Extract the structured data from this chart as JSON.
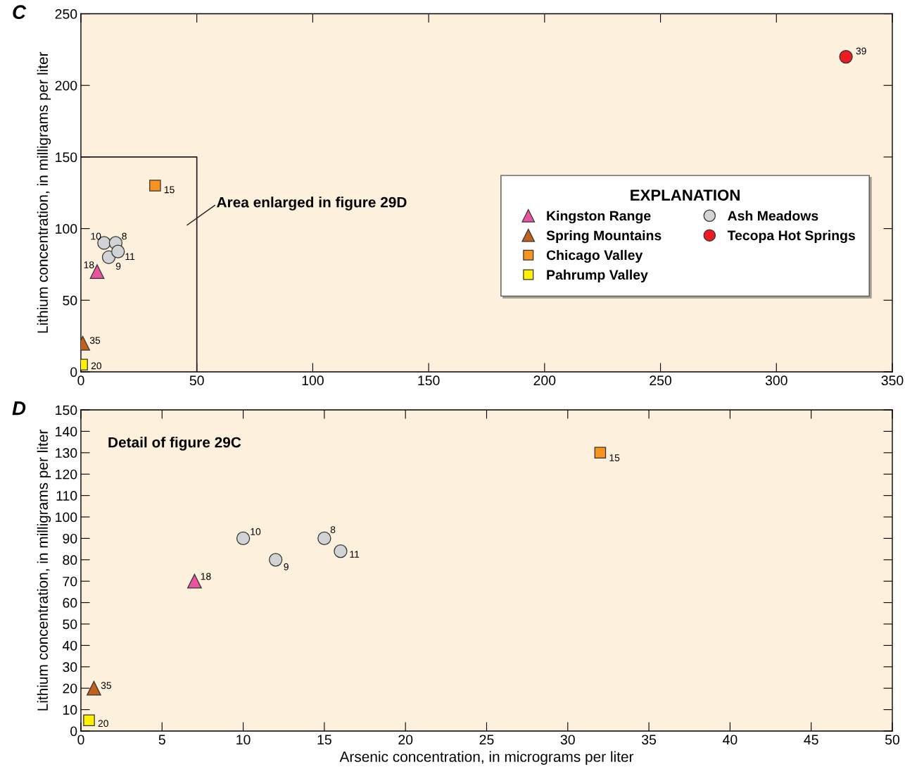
{
  "chart_data": [
    {
      "type": "scatter",
      "title": "C",
      "ylabel": "Lithium concentration, in milligrams per liter",
      "legend_title": "EXPLANATION",
      "legend": "right",
      "grid": false,
      "xlim": [
        0,
        350
      ],
      "ylim": [
        0,
        250
      ],
      "xticks": [
        0,
        50,
        100,
        150,
        200,
        250,
        300,
        350
      ],
      "yticks": [
        0,
        50,
        100,
        150,
        200,
        250
      ],
      "series": [
        {
          "name": "Kingston Range",
          "color": "#e8559e",
          "marker": "triangle",
          "x": [
            7
          ],
          "values": [
            70
          ]
        },
        {
          "name": "Spring Mountains",
          "color": "#c0621c",
          "marker": "triangle",
          "x": [
            0.8
          ],
          "values": [
            20
          ]
        },
        {
          "name": "Chicago Valley",
          "color": "#f7931e",
          "marker": "square",
          "x": [
            32
          ],
          "values": [
            130
          ]
        },
        {
          "name": "Pahrump Valley",
          "color": "#fff200",
          "marker": "square",
          "x": [
            0.5
          ],
          "values": [
            5
          ]
        },
        {
          "name": "Ash Meadows",
          "color": "#d1d3d4",
          "marker": "circle",
          "x": [
            10,
            12,
            15,
            16
          ],
          "values": [
            90,
            80,
            90,
            84
          ]
        },
        {
          "name": "Tecopa Hot Springs",
          "color": "#ed1c24",
          "marker": "circle",
          "x": [
            330
          ],
          "values": [
            220
          ]
        },
        {
          "type": "line",
          "color": "#231f20",
          "marker": "none",
          "line_style": "solid",
          "x": [
            0,
            50,
            50
          ],
          "values": [
            150,
            150,
            0
          ]
        }
      ],
      "annotations": [
        "Area enlarged in figure 29D",
        {
          "text": "18",
          "x": 7,
          "y": 70
        },
        {
          "text": "35",
          "x": 0.8,
          "y": 20
        },
        {
          "text": "15",
          "x": 32,
          "y": 130
        },
        {
          "text": "20",
          "x": 0.5,
          "y": 5
        },
        {
          "text": "10",
          "x": 10,
          "y": 90
        },
        {
          "text": "9",
          "x": 12,
          "y": 80
        },
        {
          "text": "8",
          "x": 15,
          "y": 90
        },
        {
          "text": "11",
          "x": 16,
          "y": 84
        },
        {
          "text": "39",
          "x": 330,
          "y": 220
        }
      ]
    },
    {
      "type": "scatter",
      "title": "D",
      "xlabel": "Arsenic concentration, in micrograms per liter",
      "ylabel": "Lithium concentration, in milligrams per liter",
      "grid": false,
      "xlim": [
        0,
        50
      ],
      "ylim": [
        0,
        150
      ],
      "xticks": [
        0,
        5,
        10,
        15,
        20,
        25,
        30,
        35,
        40,
        45,
        50
      ],
      "yticks": [
        0,
        10,
        20,
        30,
        40,
        50,
        60,
        70,
        80,
        90,
        100,
        110,
        120,
        130,
        140,
        150
      ],
      "series": [
        {
          "color": "#e8559e",
          "marker": "triangle",
          "x": [
            7
          ],
          "values": [
            70
          ]
        },
        {
          "color": "#c0621c",
          "marker": "triangle",
          "x": [
            0.8
          ],
          "values": [
            20
          ]
        },
        {
          "color": "#f7931e",
          "marker": "square",
          "x": [
            32
          ],
          "values": [
            130
          ]
        },
        {
          "color": "#fff200",
          "marker": "square",
          "x": [
            0.5
          ],
          "values": [
            5
          ]
        },
        {
          "color": "#d1d3d4",
          "marker": "circle",
          "x": [
            10,
            12,
            15,
            16
          ],
          "values": [
            90,
            80,
            90,
            84
          ]
        }
      ],
      "annotations": [
        "Detail of figure 29C",
        {
          "text": "18",
          "x": 7,
          "y": 70
        },
        {
          "text": "35",
          "x": 0.8,
          "y": 20
        },
        {
          "text": "15",
          "x": 32,
          "y": 130
        },
        {
          "text": "20",
          "x": 0.5,
          "y": 5
        },
        {
          "text": "10",
          "x": 10,
          "y": 90
        },
        {
          "text": "9",
          "x": 12,
          "y": 80
        },
        {
          "text": "8",
          "x": 15,
          "y": 90
        },
        {
          "text": "11",
          "x": 16,
          "y": 84
        }
      ]
    }
  ]
}
